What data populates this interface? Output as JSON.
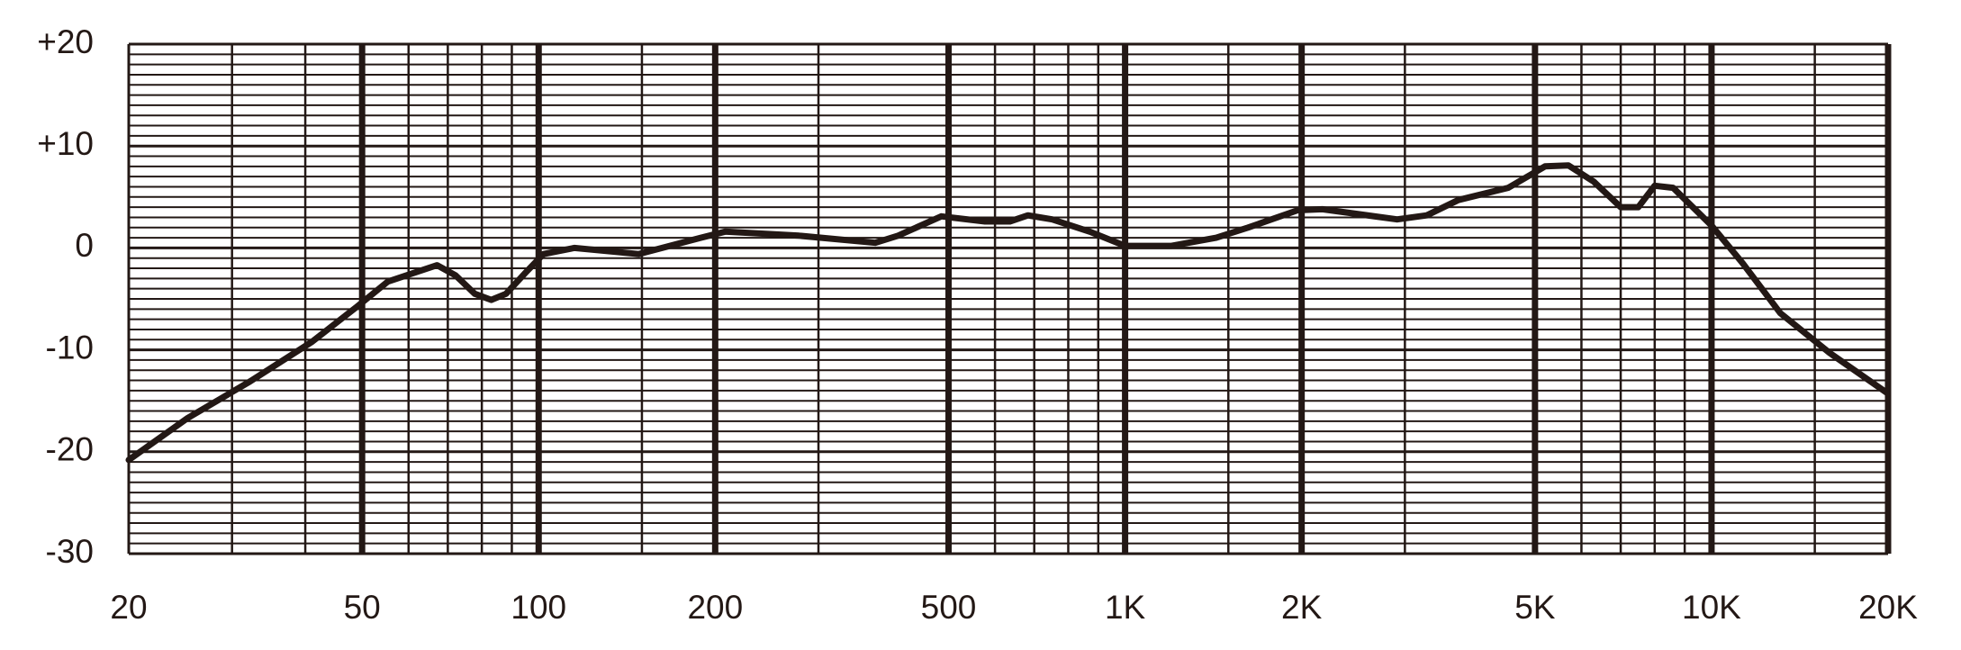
{
  "chart_data": {
    "type": "line",
    "xscale": "log",
    "color": "#231815",
    "x": [
      20,
      25.2,
      32.2,
      41.1,
      48.9,
      55.3,
      60.9,
      67.1,
      72.2,
      77.8,
      83,
      88,
      94.7,
      101.9,
      115,
      148,
      189,
      208,
      278,
      375,
      410,
      486,
      577,
      636,
      683,
      751,
      870,
      1000,
      1200,
      1430,
      1620,
      1970,
      2170,
      2910,
      3270,
      3700,
      4500,
      5200,
      5700,
      6300,
      7000,
      7500,
      8000,
      8600,
      10000,
      11300,
      13100,
      15900,
      20000
    ],
    "values": [
      -20.8,
      -16.7,
      -13.1,
      -9.2,
      -5.8,
      -3.3,
      -2.5,
      -1.7,
      -2.7,
      -4.5,
      -5.1,
      -4.5,
      -2.5,
      -0.6,
      0,
      -0.6,
      1.0,
      1.6,
      1.2,
      0.5,
      1.2,
      3.1,
      2.6,
      2.6,
      3.2,
      2.8,
      1.6,
      0.2,
      0.2,
      1.0,
      2.0,
      3.7,
      3.8,
      2.8,
      3.2,
      4.7,
      5.9,
      8.0,
      8.1,
      6.5,
      4.0,
      4.0,
      6.1,
      5.9,
      2.2,
      -1.5,
      -6.4,
      -10.3,
      -14.3
    ],
    "xlim": [
      20,
      20000
    ],
    "ylim": [
      -30,
      20
    ],
    "xticks": [
      20,
      50,
      100,
      200,
      500,
      {
        "value": 1000,
        "label": "1K"
      },
      {
        "value": 2000,
        "label": "2K"
      },
      {
        "value": 5000,
        "label": "5K"
      },
      {
        "value": 10000,
        "label": "10K"
      },
      {
        "value": 20000,
        "label": "20K"
      }
    ],
    "x_gridlines": [
      30,
      40,
      60,
      70,
      80,
      90,
      150,
      300,
      600,
      700,
      800,
      900,
      1500,
      3000,
      6000,
      7000,
      8000,
      9000,
      15000
    ],
    "yticks": [
      {
        "value": 20,
        "label": "+20"
      },
      {
        "value": 10,
        "label": "+10"
      },
      0,
      -10,
      -20,
      -30
    ],
    "y_gridlines": [
      -30,
      -29,
      -28,
      -27,
      -26,
      -25,
      -24,
      -23,
      -22,
      -21,
      -20,
      -19,
      -18,
      -17,
      -16,
      -15,
      -14,
      -13,
      -12,
      -11,
      -10,
      -9,
      -8,
      -7,
      -6,
      -5,
      -4,
      -3,
      -2,
      -1,
      0,
      1,
      2,
      3,
      4,
      5,
      6,
      7,
      8,
      9,
      10,
      11,
      12,
      13,
      14,
      15,
      16,
      17,
      18,
      19,
      20
    ],
    "grid": true
  }
}
